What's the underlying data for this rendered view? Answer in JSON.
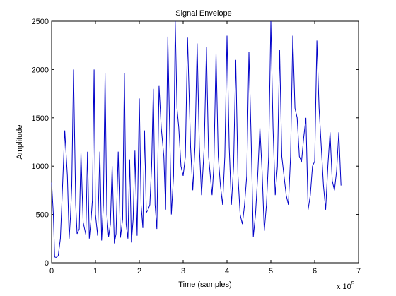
{
  "chart_data": {
    "type": "line",
    "title": "Signal Envelope",
    "xlabel": "Time (samples)",
    "ylabel": "Amplitude",
    "x_multiplier_label": "x 10",
    "x_multiplier_exponent": "5",
    "xlim": [
      0,
      7
    ],
    "ylim": [
      0,
      2500
    ],
    "xticks": [
      "0",
      "1",
      "2",
      "3",
      "4",
      "5",
      "6",
      "7"
    ],
    "yticks": [
      "0",
      "500",
      "1000",
      "1500",
      "2000",
      "2500"
    ],
    "grid": false,
    "line_color": "#0000c8",
    "series": [
      {
        "x": [
          0.0,
          0.04,
          0.07,
          0.1,
          0.15,
          0.2,
          0.25,
          0.3,
          0.36,
          0.4,
          0.43,
          0.46,
          0.5,
          0.55,
          0.58,
          0.63,
          0.67,
          0.72,
          0.78,
          0.82,
          0.86,
          0.9,
          0.93,
          0.97,
          1.0,
          1.05,
          1.1,
          1.14,
          1.18,
          1.22,
          1.26,
          1.3,
          1.34,
          1.38,
          1.43,
          1.47,
          1.52,
          1.57,
          1.62,
          1.66,
          1.7,
          1.74,
          1.78,
          1.82,
          1.86,
          1.9,
          1.95,
          2.0,
          2.04,
          2.08,
          2.12,
          2.16,
          2.2,
          2.24,
          2.28,
          2.32,
          2.36,
          2.4,
          2.45,
          2.5,
          2.56,
          2.6,
          2.65,
          2.7,
          2.73,
          2.78,
          2.82,
          2.86,
          2.9,
          2.95,
          3.0,
          3.05,
          3.1,
          3.17,
          3.22,
          3.27,
          3.32,
          3.37,
          3.42,
          3.48,
          3.53,
          3.58,
          3.62,
          3.66,
          3.7,
          3.75,
          3.8,
          3.85,
          3.9,
          3.95,
          4.0,
          4.05,
          4.1,
          4.15,
          4.2,
          4.25,
          4.3,
          4.35,
          4.4,
          4.45,
          4.5,
          4.55,
          4.6,
          4.65,
          4.7,
          4.75,
          4.8,
          4.85,
          4.9,
          4.95,
          5.0,
          5.05,
          5.1,
          5.15,
          5.2,
          5.25,
          5.3,
          5.35,
          5.4,
          5.45,
          5.5,
          5.55,
          5.6,
          5.65,
          5.7,
          5.75,
          5.8,
          5.85,
          5.9,
          5.95,
          6.0,
          6.05,
          6.1,
          6.15,
          6.2,
          6.25,
          6.3,
          6.35,
          6.4,
          6.45,
          6.5,
          6.55,
          6.6
        ],
        "y": [
          830,
          500,
          60,
          55,
          70,
          250,
          800,
          1370,
          900,
          250,
          480,
          800,
          2000,
          600,
          300,
          350,
          1140,
          420,
          290,
          1150,
          250,
          450,
          650,
          2000,
          500,
          280,
          1150,
          230,
          600,
          1960,
          500,
          270,
          400,
          1000,
          200,
          300,
          1150,
          260,
          450,
          1960,
          400,
          250,
          1070,
          210,
          450,
          1160,
          280,
          1700,
          600,
          360,
          1370,
          520,
          550,
          600,
          1000,
          1800,
          600,
          350,
          1830,
          1400,
          1100,
          550,
          2340,
          1200,
          500,
          900,
          2500,
          1600,
          1400,
          1000,
          900,
          1100,
          2330,
          1200,
          750,
          1200,
          2270,
          1200,
          700,
          1200,
          2230,
          1100,
          900,
          700,
          1000,
          2170,
          1100,
          800,
          600,
          1100,
          2350,
          1200,
          600,
          1000,
          2100,
          900,
          500,
          400,
          600,
          900,
          2180,
          1300,
          270,
          500,
          900,
          1400,
          950,
          330,
          600,
          1100,
          2500,
          1400,
          700,
          1000,
          2200,
          1100,
          900,
          700,
          600,
          1100,
          2350,
          1600,
          1500,
          1100,
          1050,
          1300,
          1500,
          550,
          700,
          1000,
          1050,
          2300,
          1600,
          1200,
          800,
          550,
          1000,
          1350,
          850,
          750,
          950,
          1350,
          800
        ]
      }
    ]
  }
}
